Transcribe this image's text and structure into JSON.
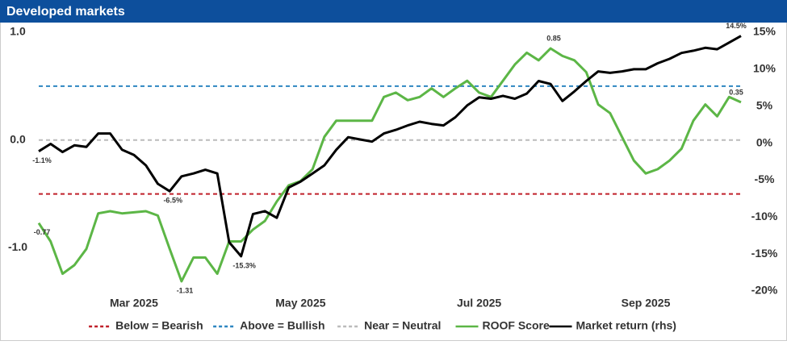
{
  "chart_data": {
    "type": "line",
    "title": "Developed markets",
    "categories": [
      null,
      null,
      null,
      null,
      null,
      null,
      null,
      null,
      "Mar 2025",
      null,
      null,
      null,
      null,
      null,
      null,
      null,
      null,
      null,
      null,
      null,
      null,
      null,
      "May 2025",
      null,
      null,
      null,
      null,
      null,
      null,
      null,
      null,
      null,
      null,
      null,
      null,
      null,
      null,
      "Jul 2025",
      null,
      null,
      null,
      null,
      null,
      null,
      null,
      null,
      null,
      null,
      null,
      null,
      null,
      "Sep 2025",
      null,
      null,
      null,
      null,
      null,
      null,
      null,
      null
    ],
    "ylim": [
      -1.4,
      1.0
    ],
    "yticks": [
      {
        "value": 1.0,
        "label": "1.0"
      },
      {
        "value": 0.0,
        "label": "0.0"
      },
      {
        "value": -1.0,
        "label": "-1.0"
      }
    ],
    "y2lim": [
      -20,
      15
    ],
    "y2ticks": [
      {
        "value": 15,
        "label": "15%"
      },
      {
        "value": 10,
        "label": "10%"
      },
      {
        "value": 5,
        "label": "5%"
      },
      {
        "value": 0,
        "label": "0%"
      },
      {
        "value": -5,
        "label": "-5%"
      },
      {
        "value": -10,
        "label": "-10%"
      },
      {
        "value": -15,
        "label": "-15%"
      },
      {
        "value": -20,
        "label": "-20%"
      }
    ],
    "reference_lines": [
      {
        "name": "Below = Bearish",
        "value": -0.5,
        "color": "#c0202a"
      },
      {
        "name": "Above = Bullish",
        "value": 0.5,
        "color": "#2e86c1"
      },
      {
        "name": "Near = Neutral",
        "value": 0.0,
        "color": "#bbbbbb"
      }
    ],
    "series": [
      {
        "name": "ROOF Score",
        "color": "#5cb646",
        "values": [
          -0.77,
          -0.94,
          -1.24,
          -1.16,
          -1.01,
          -0.68,
          -0.66,
          -0.68,
          -0.67,
          -0.66,
          -0.7,
          -1.01,
          -1.31,
          -1.09,
          -1.09,
          -1.24,
          -0.94,
          -0.94,
          -0.83,
          -0.75,
          -0.57,
          -0.42,
          -0.38,
          -0.27,
          0.03,
          0.18,
          0.18,
          0.18,
          0.18,
          0.4,
          0.44,
          0.37,
          0.4,
          0.48,
          0.4,
          0.48,
          0.55,
          0.44,
          0.4,
          0.55,
          0.7,
          0.81,
          0.74,
          0.85,
          0.78,
          0.74,
          0.63,
          0.33,
          0.25,
          0.03,
          -0.19,
          -0.31,
          -0.27,
          -0.19,
          -0.08,
          0.18,
          0.33,
          0.22,
          0.4,
          0.35
        ],
        "value_labels": [
          "-0.77",
          null,
          null,
          null,
          null,
          null,
          null,
          null,
          null,
          null,
          null,
          null,
          "-1.31",
          null,
          null,
          null,
          null,
          null,
          null,
          null,
          null,
          null,
          null,
          null,
          null,
          null,
          null,
          null,
          null,
          null,
          null,
          null,
          null,
          null,
          null,
          null,
          null,
          null,
          null,
          null,
          null,
          null,
          null,
          "0.85",
          null,
          null,
          null,
          null,
          null,
          null,
          null,
          null,
          null,
          null,
          null,
          null,
          null,
          null,
          null,
          "0.35"
        ]
      },
      {
        "name": "Market return (rhs)",
        "color": "#000000",
        "axis": "y2",
        "values": [
          -1.1,
          -0.1,
          -1.2,
          -0.3,
          -0.5,
          1.3,
          1.3,
          -0.9,
          -1.6,
          -3.0,
          -5.5,
          -6.5,
          -4.5,
          -4.1,
          -3.6,
          -4.1,
          -13.4,
          -15.3,
          -9.6,
          -9.2,
          -10.1,
          -6.0,
          -5.2,
          -4.1,
          -3.0,
          -0.9,
          0.8,
          0.5,
          0.2,
          1.3,
          1.8,
          2.4,
          2.9,
          2.6,
          2.4,
          3.5,
          5.1,
          6.2,
          6.0,
          6.4,
          6.0,
          6.7,
          8.4,
          8.0,
          5.7,
          7.0,
          8.4,
          9.7,
          9.5,
          9.7,
          10.0,
          10.0,
          10.8,
          11.4,
          12.2,
          12.5,
          12.9,
          12.7,
          13.6,
          14.5
        ],
        "value_labels": [
          "-1.1%",
          null,
          null,
          null,
          null,
          null,
          null,
          null,
          null,
          null,
          null,
          "-6.5%",
          null,
          null,
          null,
          null,
          null,
          "-15.3%",
          null,
          null,
          null,
          null,
          null,
          null,
          null,
          null,
          null,
          null,
          null,
          null,
          null,
          null,
          null,
          null,
          null,
          null,
          null,
          null,
          null,
          null,
          null,
          null,
          null,
          null,
          null,
          null,
          null,
          null,
          null,
          null,
          null,
          null,
          null,
          null,
          null,
          null,
          null,
          null,
          null,
          "14.5%"
        ]
      }
    ]
  }
}
